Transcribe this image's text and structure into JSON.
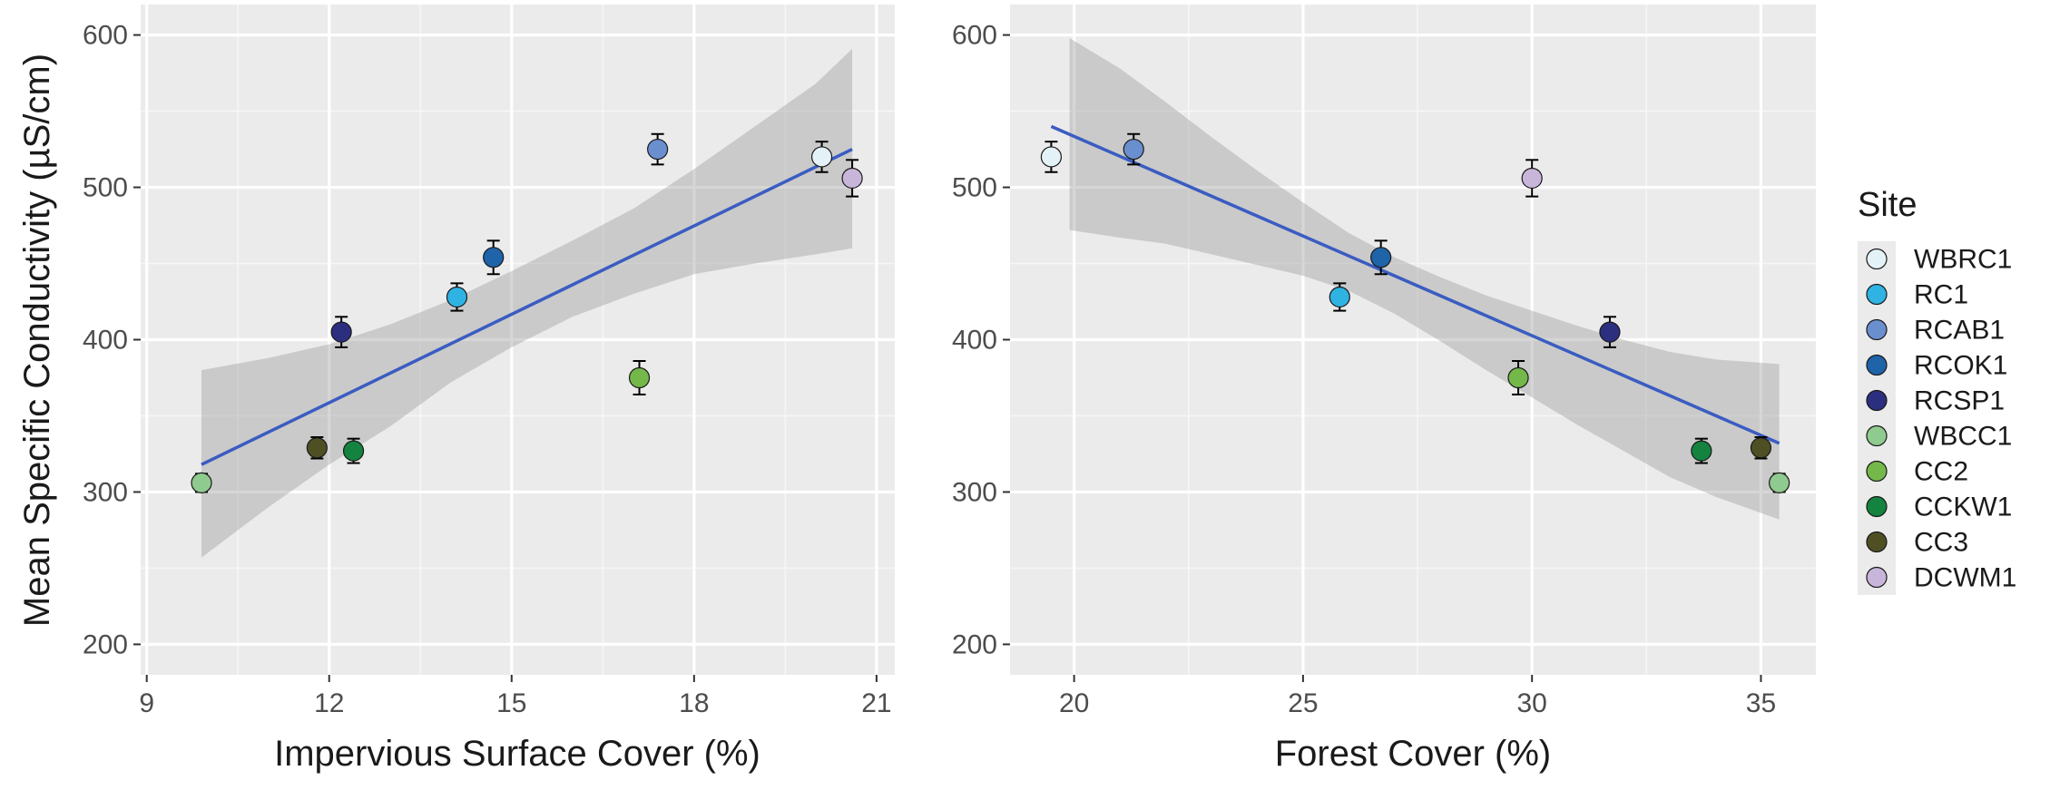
{
  "ylabel": "Mean Specific Conductivity (µS/cm)",
  "legend": {
    "title": "Site",
    "items": [
      {
        "label": "WBRC1",
        "color": "#e3f2f7"
      },
      {
        "label": "RC1",
        "color": "#2fb3e3"
      },
      {
        "label": "RCAB1",
        "color": "#6a8fcf"
      },
      {
        "label": "RCOK1",
        "color": "#1f63a8"
      },
      {
        "label": "RCSP1",
        "color": "#2c2f80"
      },
      {
        "label": "WBCC1",
        "color": "#8fca8e"
      },
      {
        "label": "CC2",
        "color": "#74b84a"
      },
      {
        "label": "CCKW1",
        "color": "#13833f"
      },
      {
        "label": "CC3",
        "color": "#4f4f24"
      },
      {
        "label": "DCWM1",
        "color": "#c8b6da"
      }
    ]
  },
  "chart_data": [
    {
      "type": "scatter",
      "xlabel": "Impervious Surface Cover (%)",
      "ylabel": "Mean Specific Conductivity (µS/cm)",
      "xlim": [
        8.9,
        21.3
      ],
      "ylim": [
        180,
        620
      ],
      "xticks": [
        9,
        12,
        15,
        18,
        21
      ],
      "yticks": [
        200,
        300,
        400,
        500,
        600
      ],
      "points": [
        {
          "site": "WBRC1",
          "x": 20.1,
          "y": 520,
          "err": 10
        },
        {
          "site": "RC1",
          "x": 14.1,
          "y": 428,
          "err": 9
        },
        {
          "site": "RCAB1",
          "x": 17.4,
          "y": 525,
          "err": 10
        },
        {
          "site": "RCOK1",
          "x": 14.7,
          "y": 454,
          "err": 11
        },
        {
          "site": "RCSP1",
          "x": 12.2,
          "y": 405,
          "err": 10
        },
        {
          "site": "WBCC1",
          "x": 9.9,
          "y": 306,
          "err": 6
        },
        {
          "site": "CC2",
          "x": 17.1,
          "y": 375,
          "err": 11
        },
        {
          "site": "CCKW1",
          "x": 12.4,
          "y": 327,
          "err": 8
        },
        {
          "site": "CC3",
          "x": 11.8,
          "y": 329,
          "err": 7
        },
        {
          "site": "DCWM1",
          "x": 20.6,
          "y": 506,
          "err": 12
        }
      ],
      "fit": {
        "x1": 9.9,
        "y1": 318,
        "x2": 20.6,
        "y2": 525
      },
      "band": {
        "x": [
          9.9,
          11,
          12,
          13,
          14,
          15,
          16,
          17,
          18,
          19,
          20,
          20.6
        ],
        "lower": [
          257,
          290,
          318,
          343,
          372,
          395,
          415,
          430,
          443,
          450,
          456,
          460
        ],
        "upper": [
          380,
          388,
          397,
          410,
          426,
          445,
          465,
          486,
          512,
          540,
          568,
          591
        ]
      }
    },
    {
      "type": "scatter",
      "xlabel": "Forest Cover (%)",
      "ylabel": "Mean Specific Conductivity (µS/cm)",
      "xlim": [
        18.6,
        36.2
      ],
      "ylim": [
        180,
        620
      ],
      "xticks": [
        20,
        25,
        30,
        35
      ],
      "yticks": [
        200,
        300,
        400,
        500,
        600
      ],
      "points": [
        {
          "site": "WBRC1",
          "x": 19.5,
          "y": 520,
          "err": 10
        },
        {
          "site": "RC1",
          "x": 25.8,
          "y": 428,
          "err": 9
        },
        {
          "site": "RCAB1",
          "x": 21.3,
          "y": 525,
          "err": 10
        },
        {
          "site": "RCOK1",
          "x": 26.7,
          "y": 454,
          "err": 11
        },
        {
          "site": "RCSP1",
          "x": 31.7,
          "y": 405,
          "err": 10
        },
        {
          "site": "WBCC1",
          "x": 35.4,
          "y": 306,
          "err": 6
        },
        {
          "site": "CC2",
          "x": 29.7,
          "y": 375,
          "err": 11
        },
        {
          "site": "CCKW1",
          "x": 33.7,
          "y": 327,
          "err": 8
        },
        {
          "site": "CC3",
          "x": 35.0,
          "y": 329,
          "err": 7
        },
        {
          "site": "DCWM1",
          "x": 30.0,
          "y": 506,
          "err": 12
        }
      ],
      "fit": {
        "x1": 19.5,
        "y1": 540,
        "x2": 35.4,
        "y2": 332
      },
      "band": {
        "x": [
          19.9,
          21,
          22,
          23,
          24,
          25,
          26,
          27,
          28,
          29,
          30,
          31,
          32,
          33,
          34,
          35.4
        ],
        "lower": [
          472,
          467,
          463,
          456,
          449,
          442,
          432,
          417,
          399,
          380,
          362,
          344,
          327,
          310,
          297,
          282
        ],
        "upper": [
          598,
          578,
          556,
          533,
          511,
          490,
          470,
          454,
          441,
          429,
          419,
          409,
          400,
          392,
          387,
          384
        ]
      }
    }
  ]
}
